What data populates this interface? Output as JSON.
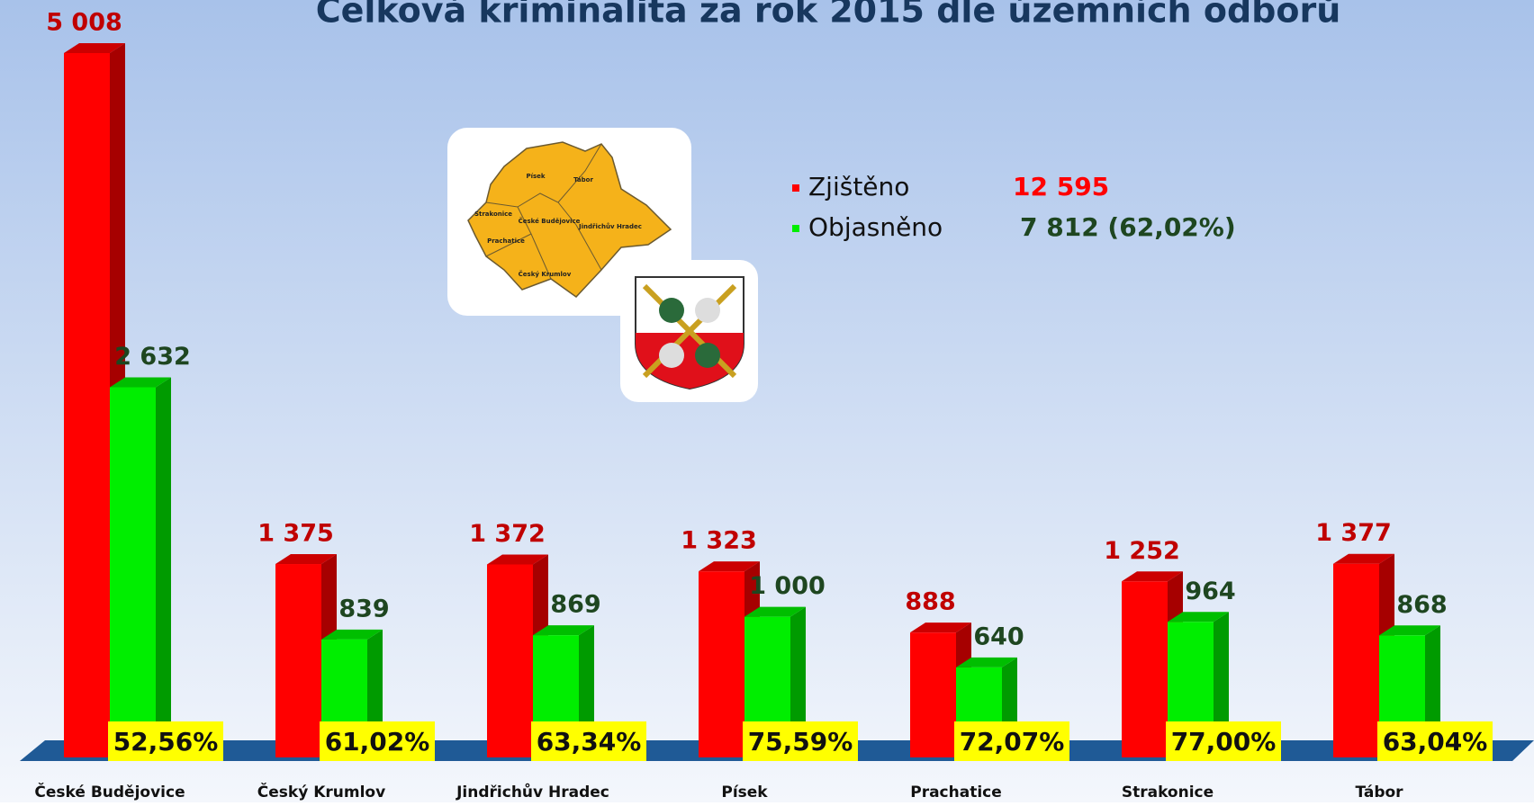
{
  "chart_data": {
    "type": "bar3d",
    "title": "Celková kriminalita za rok 2015 dle územních odborů",
    "categories": [
      "České Budějovice",
      "Český Krumlov",
      "Jindřichův Hradec",
      "Písek",
      "Prachatice",
      "Strakonice",
      "Tábor"
    ],
    "series": [
      {
        "name": "Zjištěno",
        "color": "#ff0000",
        "label_color": "#c00000",
        "values": [
          5008,
          1375,
          1372,
          1323,
          888,
          1252,
          1377
        ],
        "value_labels": [
          "5 008",
          "1 375",
          "1 372",
          "1 323",
          "888",
          "1 252",
          "1 377"
        ],
        "total": 12595,
        "total_label": "12 595"
      },
      {
        "name": "Objasněno",
        "color": "#00ee00",
        "label_color": "#1e4620",
        "values": [
          2632,
          839,
          869,
          1000,
          640,
          964,
          868
        ],
        "value_labels": [
          "2 632",
          "839",
          "869",
          "1 000",
          "640",
          "964",
          "868"
        ],
        "total": 7812,
        "total_label": "7 812 (62,02%)"
      }
    ],
    "clearance_rate": {
      "values": [
        52.56,
        61.02,
        63.34,
        75.59,
        72.07,
        77.0,
        63.04
      ],
      "value_labels": [
        "52,56%",
        "61,02%",
        "63,34%",
        "75,59%",
        "72,07%",
        "77,00%",
        "63,04%"
      ]
    },
    "map_labels": [
      "Písek",
      "Tábor",
      "Strakonice",
      "České Budějovice",
      "Jindřichův Hradec",
      "Prachatice",
      "Český Krumlov"
    ]
  }
}
